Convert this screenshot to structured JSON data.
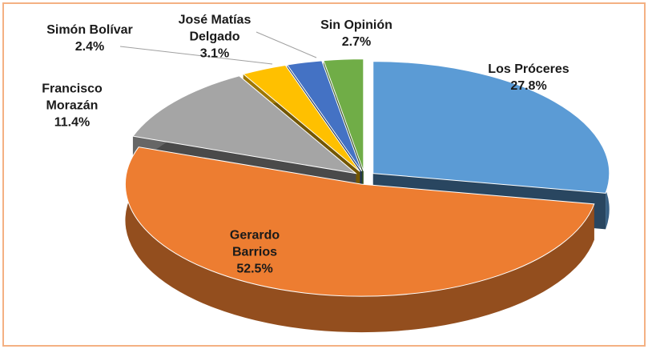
{
  "chart_data": {
    "type": "pie",
    "categories": [
      "Los Próceres",
      "Gerardo Barrios",
      "Francisco Morazán",
      "José Matías Delgado",
      "Simón Bolívar",
      "Sin Opinión"
    ],
    "values": [
      27.8,
      52.5,
      11.4,
      3.1,
      2.4,
      2.7
    ],
    "value_labels": [
      "27.8%",
      "52.5%",
      "11.4%",
      "3.1%",
      "2.4%",
      "2.7%"
    ],
    "colors": [
      "#5b9bd5",
      "#ed7d31",
      "#a5a5a5",
      "#ffc000",
      "#4472c4",
      "#70ad47"
    ]
  }
}
